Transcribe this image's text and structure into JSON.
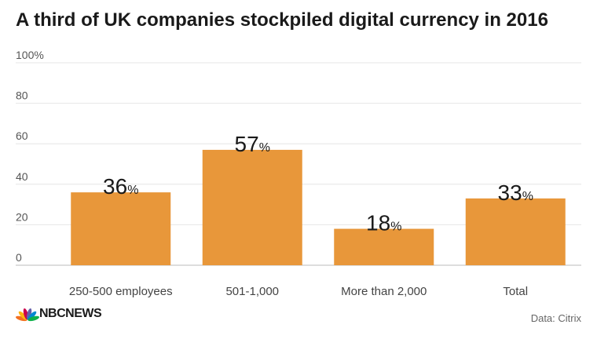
{
  "title": "A third of UK companies stockpiled digital currency in 2016",
  "source": "Data: Citrix",
  "logo": {
    "text": "NBCNEWS"
  },
  "colors": {
    "bar": "#E8973A",
    "grid": "#e6e6e6",
    "axis_text": "#555555",
    "logo_peacock": [
      "#f37021",
      "#fcb711",
      "#cc004c",
      "#6460aa",
      "#0089d0",
      "#0db14b"
    ]
  },
  "chart_data": {
    "type": "bar",
    "categories": [
      "250-500 employees",
      "501-1,000",
      "More than 2,000",
      "Total"
    ],
    "values": [
      36,
      57,
      18,
      33
    ],
    "data_labels": [
      "36",
      "57",
      "18",
      "33"
    ],
    "data_label_suffix": "%",
    "ylim": [
      0,
      100
    ],
    "yticks": [
      "0",
      "20",
      "40",
      "60",
      "80",
      "100%"
    ],
    "ytick_values": [
      0,
      20,
      40,
      60,
      80,
      100
    ],
    "grid": true,
    "xlabel": "",
    "ylabel": ""
  }
}
